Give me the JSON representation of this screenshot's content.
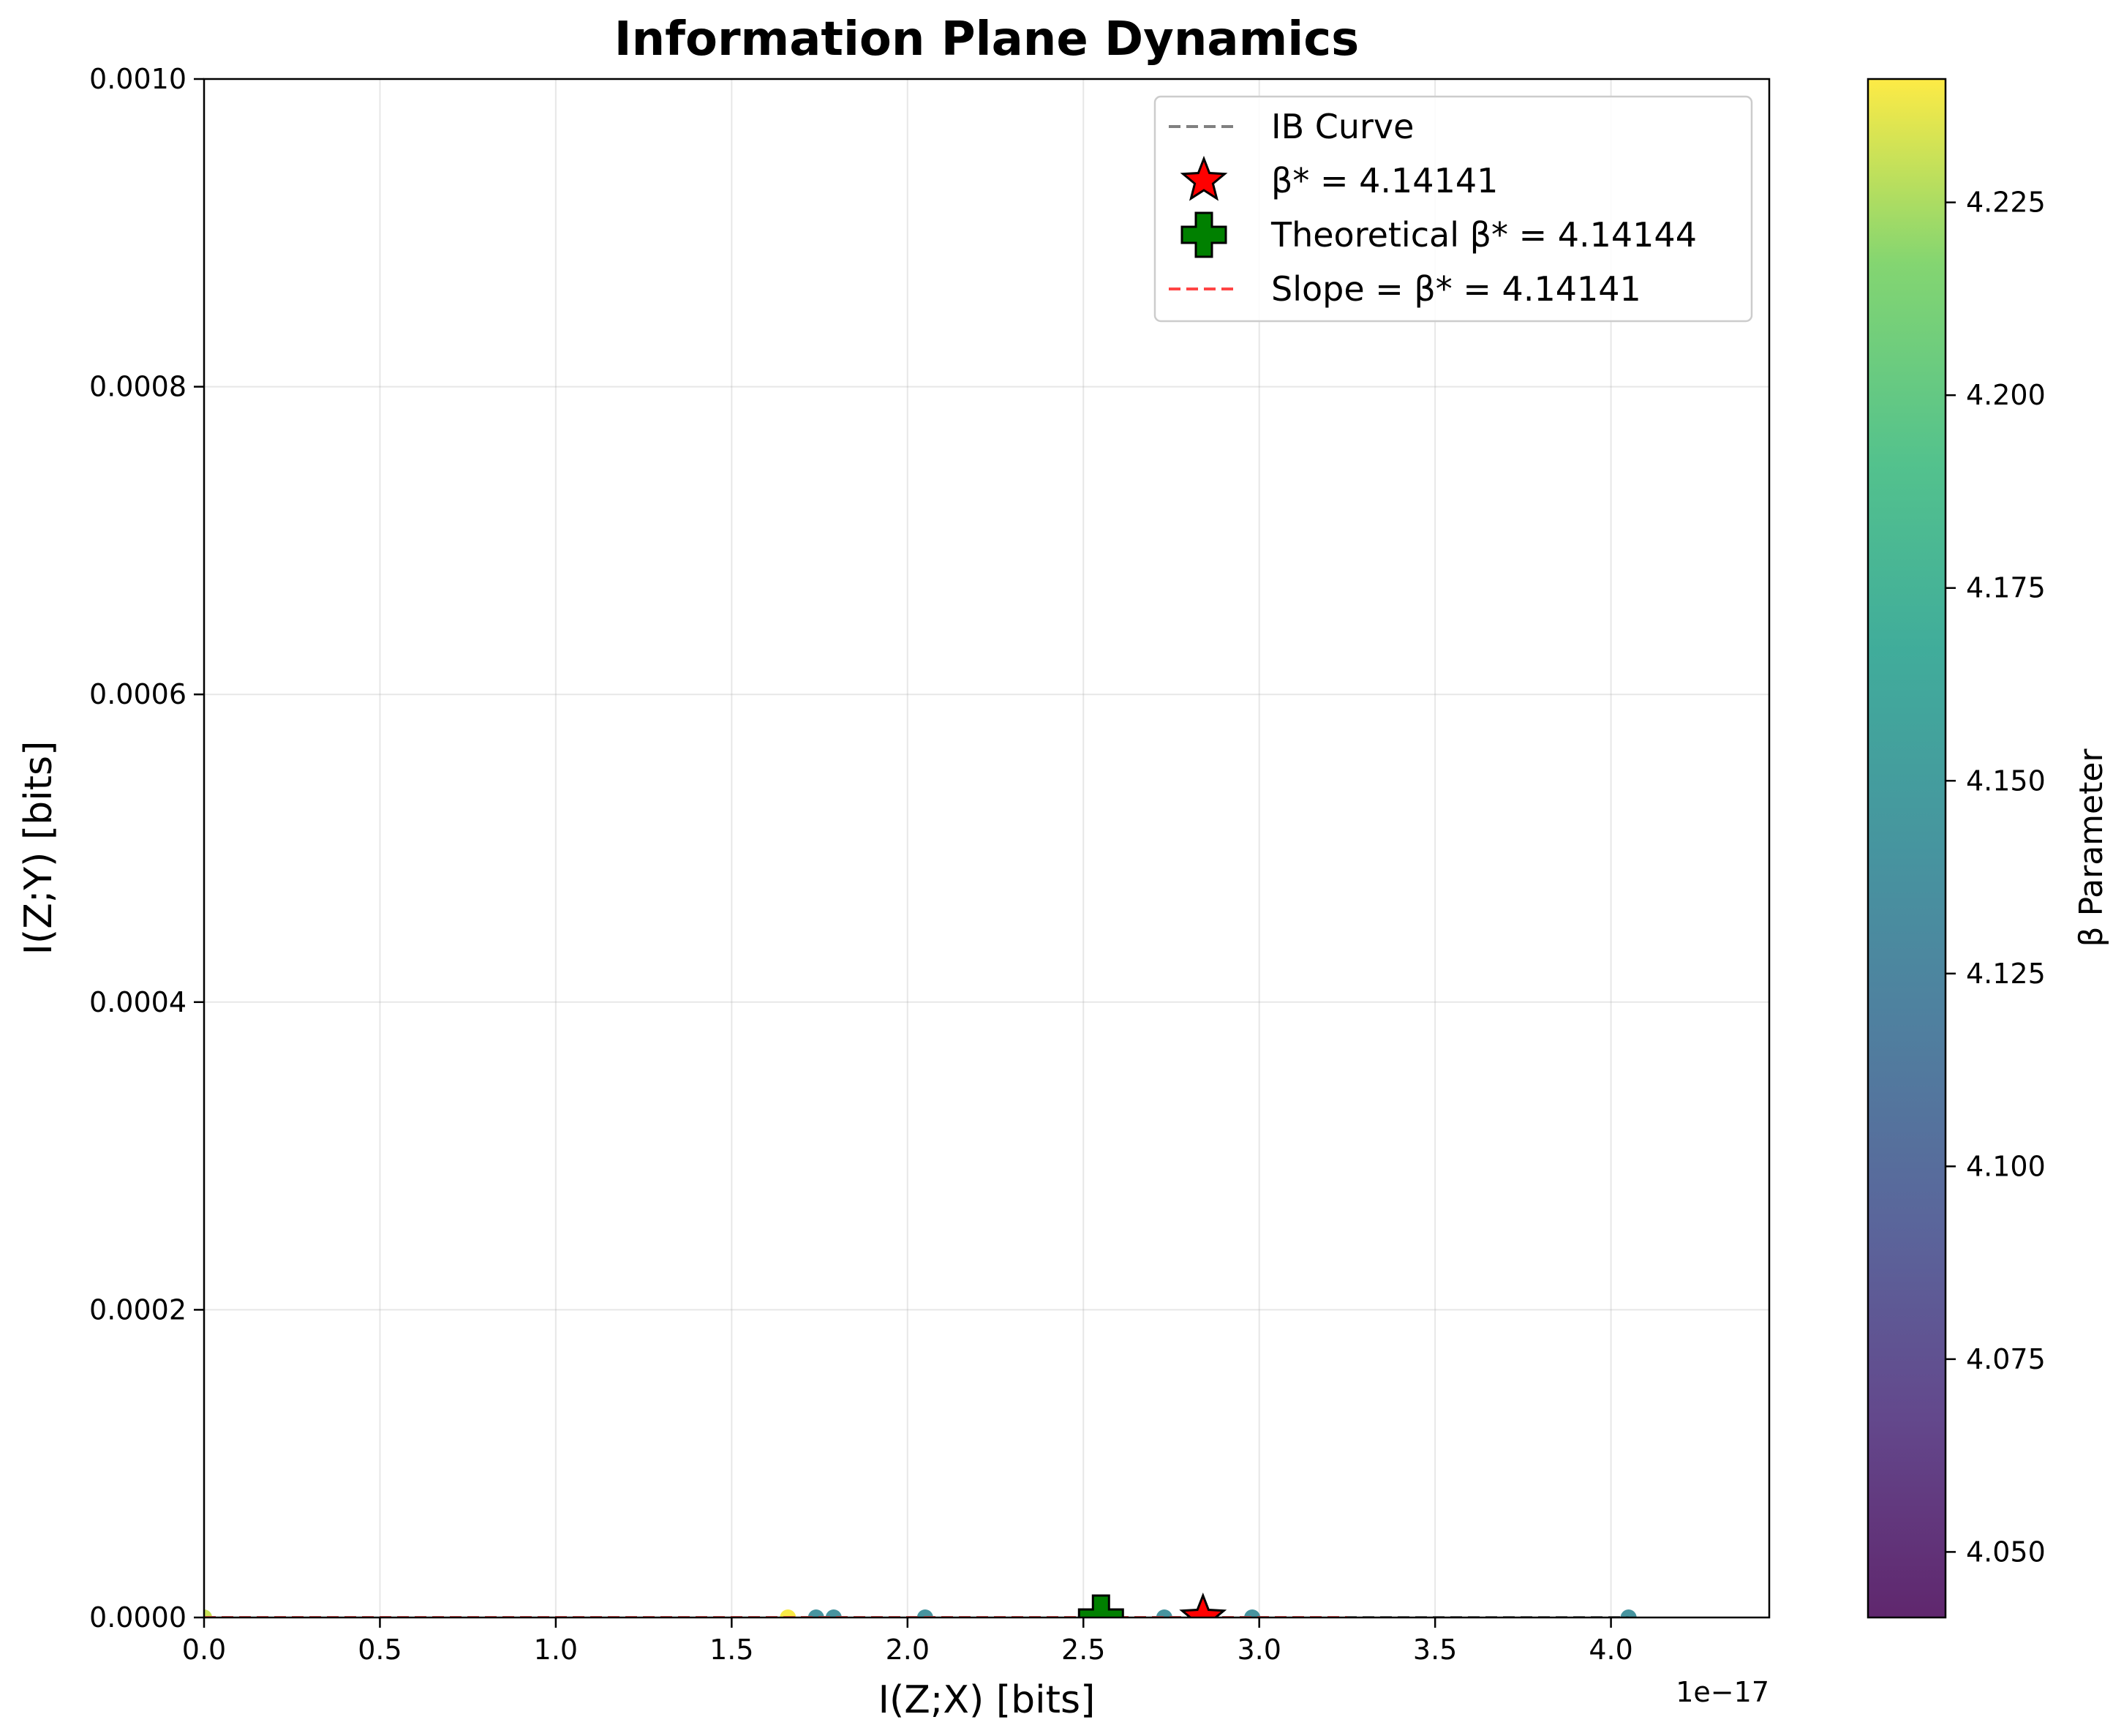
{
  "chart_data": {
    "type": "scatter",
    "title": "Information Plane Dynamics",
    "xlabel": "I(Z;X) [bits]",
    "ylabel": "I(Z;Y) [bits]",
    "x_offset_label": "1e−17",
    "x_scale": 1e-17,
    "xlim": [
      0.0,
      4.45
    ],
    "ylim": [
      0.0,
      0.001
    ],
    "x_ticks": [
      "0.0",
      "0.5",
      "1.0",
      "1.5",
      "2.0",
      "2.5",
      "3.0",
      "3.5",
      "4.0"
    ],
    "y_ticks": [
      "0.0000",
      "0.0002",
      "0.0004",
      "0.0006",
      "0.0008",
      "0.0010"
    ],
    "grid": true,
    "legend_position": "top-right",
    "legend": [
      {
        "label": "IB Curve",
        "marker": "dashed-line",
        "color": "#808080"
      },
      {
        "label": "β* = 4.14141",
        "marker": "star",
        "color": "#ff0000"
      },
      {
        "label": "Theoretical β* = 4.14144",
        "marker": "plus",
        "color": "#008000"
      },
      {
        "label": "Slope = β* = 4.14141",
        "marker": "dashed-line",
        "color": "#ff4444"
      }
    ],
    "points": [
      {
        "x": 0.0,
        "y": 0.0,
        "beta": 4.23
      },
      {
        "x": 1.66,
        "y": 0.0,
        "beta": 4.24
      },
      {
        "x": 1.74,
        "y": 0.0,
        "beta": 4.14
      },
      {
        "x": 1.79,
        "y": 0.0,
        "beta": 4.14
      },
      {
        "x": 2.05,
        "y": 0.0,
        "beta": 4.14
      },
      {
        "x": 2.73,
        "y": 0.0,
        "beta": 4.14
      },
      {
        "x": 2.98,
        "y": 0.0,
        "beta": 4.14
      },
      {
        "x": 4.05,
        "y": 0.0,
        "beta": 4.14
      }
    ],
    "ib_curve": {
      "x": [
        0.0,
        4.05
      ],
      "y": [
        0.0,
        0.0
      ]
    },
    "beta_star_point": {
      "x": 2.84,
      "y": 0.0
    },
    "theoretical_point": {
      "x": 2.55,
      "y": 0.0
    },
    "slope_line": {
      "x": [
        0.0,
        3.25
      ],
      "y": [
        0.0,
        0.0
      ]
    },
    "colorbar": {
      "label": "β Parameter",
      "colormap": "viridis",
      "range": [
        4.0415,
        4.241
      ],
      "ticks": [
        "4.050",
        "4.075",
        "4.100",
        "4.125",
        "4.150",
        "4.175",
        "4.200",
        "4.225"
      ]
    }
  }
}
